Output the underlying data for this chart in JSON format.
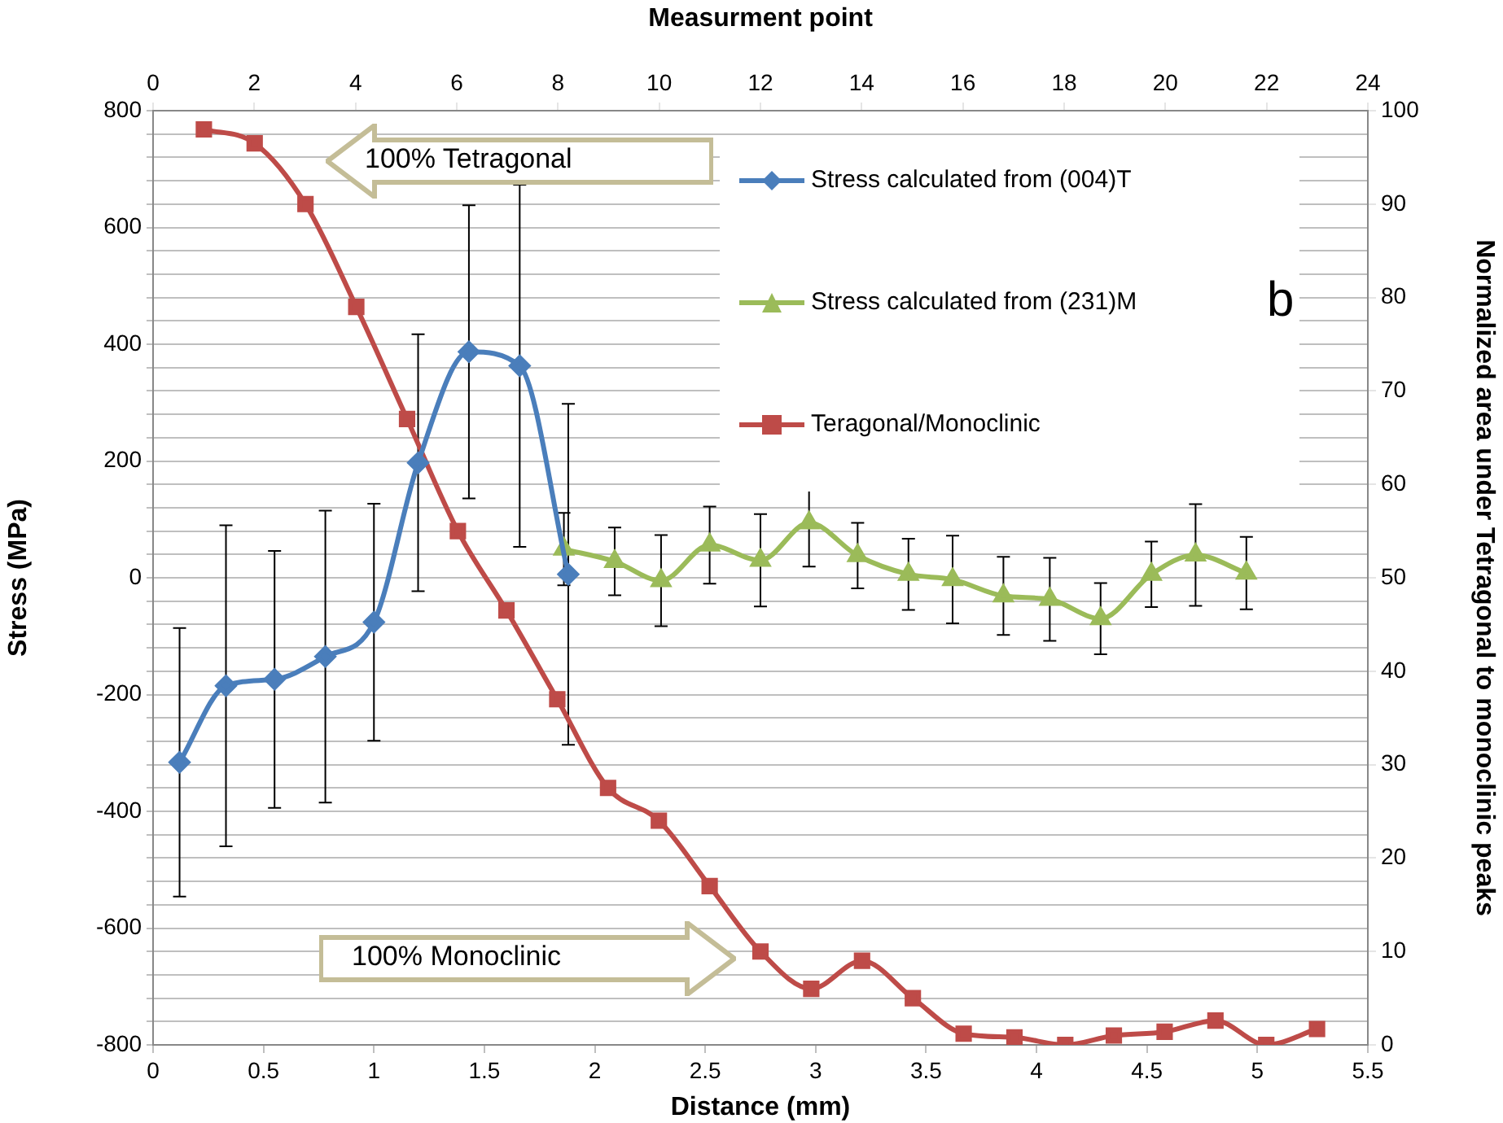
{
  "chart_data": {
    "type": "line",
    "xlabel": "Distance (mm)",
    "ylabel": "Stress (MPa)",
    "y2label": "Normalized area under Tetragonal to monoclinic peaks",
    "x2label": "Measurment point",
    "xlim": [
      0,
      5.5
    ],
    "xticks": [
      0,
      0.5,
      1,
      1.5,
      2,
      2.5,
      3,
      3.5,
      4,
      4.5,
      5,
      5.5
    ],
    "x2lim": [
      0,
      24
    ],
    "x2ticks": [
      0,
      2,
      4,
      6,
      8,
      10,
      12,
      14,
      16,
      18,
      20,
      22,
      24
    ],
    "ylim": [
      -800,
      800
    ],
    "yticks": [
      -800,
      {
        "value": -760,
        "label": null
      },
      {
        "value": -720,
        "label": null
      },
      {
        "value": -680,
        "label": null
      },
      {
        "value": -640,
        "label": null
      },
      -600,
      {
        "value": -560,
        "label": null
      },
      {
        "value": -520,
        "label": null
      },
      {
        "value": -480,
        "label": null
      },
      {
        "value": -440,
        "label": null
      },
      -400,
      {
        "value": -360,
        "label": null
      },
      {
        "value": -320,
        "label": null
      },
      {
        "value": -280,
        "label": null
      },
      {
        "value": -240,
        "label": null
      },
      -200,
      {
        "value": -160,
        "label": null
      },
      {
        "value": -120,
        "label": null
      },
      {
        "value": -80,
        "label": null
      },
      {
        "value": -40,
        "label": null
      },
      0,
      {
        "value": 40,
        "label": null
      },
      {
        "value": 80,
        "label": null
      },
      {
        "value": 120,
        "label": null
      },
      {
        "value": 160,
        "label": null
      },
      200,
      {
        "value": 240,
        "label": null
      },
      {
        "value": 280,
        "label": null
      },
      {
        "value": 320,
        "label": null
      },
      {
        "value": 360,
        "label": null
      },
      400,
      {
        "value": 440,
        "label": null
      },
      {
        "value": 480,
        "label": null
      },
      {
        "value": 520,
        "label": null
      },
      {
        "value": 560,
        "label": null
      },
      600,
      {
        "value": 640,
        "label": null
      },
      {
        "value": 680,
        "label": null
      },
      {
        "value": 720,
        "label": null
      },
      {
        "value": 760,
        "label": null
      },
      800
    ],
    "y2lim": [
      0,
      100
    ],
    "y2ticks": [
      0,
      10,
      20,
      30,
      40,
      50,
      60,
      70,
      80,
      90,
      100
    ],
    "grid": "y",
    "legend": "top right",
    "series": [
      {
        "name": "Stress calculated from (004)T",
        "color": "#4a7ebb",
        "marker": "diamond",
        "x": [
          0.12,
          0.33,
          0.55,
          0.78,
          1.0,
          1.2,
          1.43,
          1.66,
          1.88
        ],
        "values": [
          -316,
          -185,
          -174,
          -135,
          -76,
          197,
          387,
          363,
          6
        ],
        "errors": [
          230,
          275,
          220,
          250,
          203,
          220,
          251,
          310,
          292
        ]
      },
      {
        "name": "Stress calculated from (231)M",
        "color": "#9bbb59",
        "marker": "triangle",
        "x": [
          1.86,
          2.09,
          2.3,
          2.52,
          2.75,
          2.97,
          3.19,
          3.42,
          3.62,
          3.85,
          4.06,
          4.29,
          4.52,
          4.72,
          4.95
        ],
        "values": [
          49,
          28,
          -5,
          56,
          30,
          94,
          38,
          6,
          -3,
          -31,
          -37,
          -70,
          6,
          39,
          8
        ],
        "errors": [
          62,
          58,
          78,
          66,
          79,
          75,
          56,
          61,
          75,
          67,
          71,
          61,
          56,
          87,
          62
        ]
      },
      {
        "name": "Teragonal/Monoclinic",
        "color": "#be4b48",
        "marker": "square",
        "axis": "y2",
        "x": [
          0.23,
          0.46,
          0.69,
          0.92,
          1.15,
          1.38,
          1.6,
          1.83,
          2.06,
          2.29,
          2.52,
          2.75,
          2.98,
          3.21,
          3.44,
          3.67,
          3.9,
          4.13,
          4.35,
          4.58,
          4.81,
          5.04,
          5.27
        ],
        "values": [
          98,
          96.5,
          90,
          79,
          67,
          55,
          46.5,
          37,
          27.5,
          24,
          17,
          10,
          6,
          9,
          5,
          1.2,
          0.8,
          0,
          1,
          1.4,
          2.6,
          0,
          1.7
        ]
      }
    ],
    "annotations": [
      "100% Tetragonal",
      "100% Monoclinic",
      "b"
    ]
  }
}
